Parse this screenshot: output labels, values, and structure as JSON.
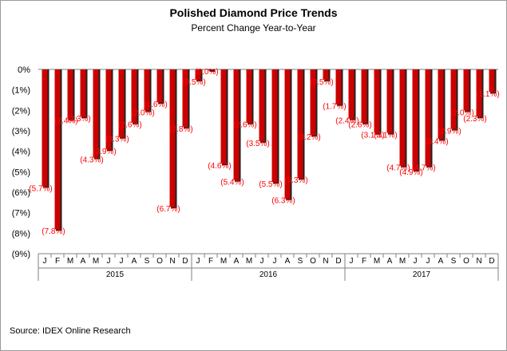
{
  "chart_data": {
    "type": "bar",
    "title": "Polished Diamond Price Trends",
    "subtitle": "Percent Change Year-to-Year",
    "source": "Source: IDEX Online Research",
    "ylim": [
      -9,
      0
    ],
    "yticks": [
      "0%",
      "(1%)",
      "(2%)",
      "(3%)",
      "(4%)",
      "(5%)",
      "(6%)",
      "(7%)",
      "(8%)",
      "(9%)"
    ],
    "bar_color": "#cc0000",
    "label_color": "#ff0000",
    "categories": [
      "J",
      "F",
      "M",
      "A",
      "M",
      "J",
      "J",
      "A",
      "S",
      "O",
      "N",
      "D",
      "J",
      "F",
      "M",
      "A",
      "M",
      "J",
      "J",
      "A",
      "S",
      "O",
      "N",
      "D",
      "J",
      "F",
      "M",
      "A",
      "M",
      "J",
      "J",
      "A",
      "S",
      "O",
      "N",
      "D"
    ],
    "years": [
      "2015",
      "2016",
      "2017"
    ],
    "values": [
      -5.7,
      -7.8,
      -2.4,
      -2.3,
      -4.3,
      -3.9,
      -3.3,
      -2.6,
      -2.0,
      -1.6,
      -6.7,
      -2.8,
      -0.5,
      -0.0,
      -4.6,
      -5.4,
      -2.6,
      -3.5,
      -5.5,
      -6.3,
      -5.3,
      -3.2,
      -0.5,
      -1.7,
      -2.4,
      -2.6,
      -3.1,
      -3.1,
      -4.7,
      -4.9,
      -4.7,
      -3.4,
      -2.9,
      -2.0,
      -2.3,
      -1.1
    ],
    "data_labels": [
      "(5.7%)",
      "(7.8%)",
      "(2.4%)",
      "(2.3%)",
      "(4.3%)",
      "(3.9%)",
      "(3.3%)",
      "(2.6%)",
      "(2.0%)",
      "(1.6%)",
      "(6.7%)",
      "(2.8%)",
      "(0.5%)",
      "(0.0%)",
      "(4.6%)",
      "(5.4%)",
      "(2.6%)",
      "(3.5%)",
      "(5.5%)",
      "(6.3%)",
      "(5.3%)",
      "(3.2%)",
      "(0.5%)",
      "(1.7%)",
      "(2.4%)",
      "(2.6%)",
      "(3.1%)",
      "(3.1%)",
      "(4.7%)",
      "(4.9%)",
      "(4.7%)",
      "(3.4%)",
      "(2.9%)",
      "(2.0%)",
      "(2.3%)",
      "(1.1%)"
    ]
  }
}
